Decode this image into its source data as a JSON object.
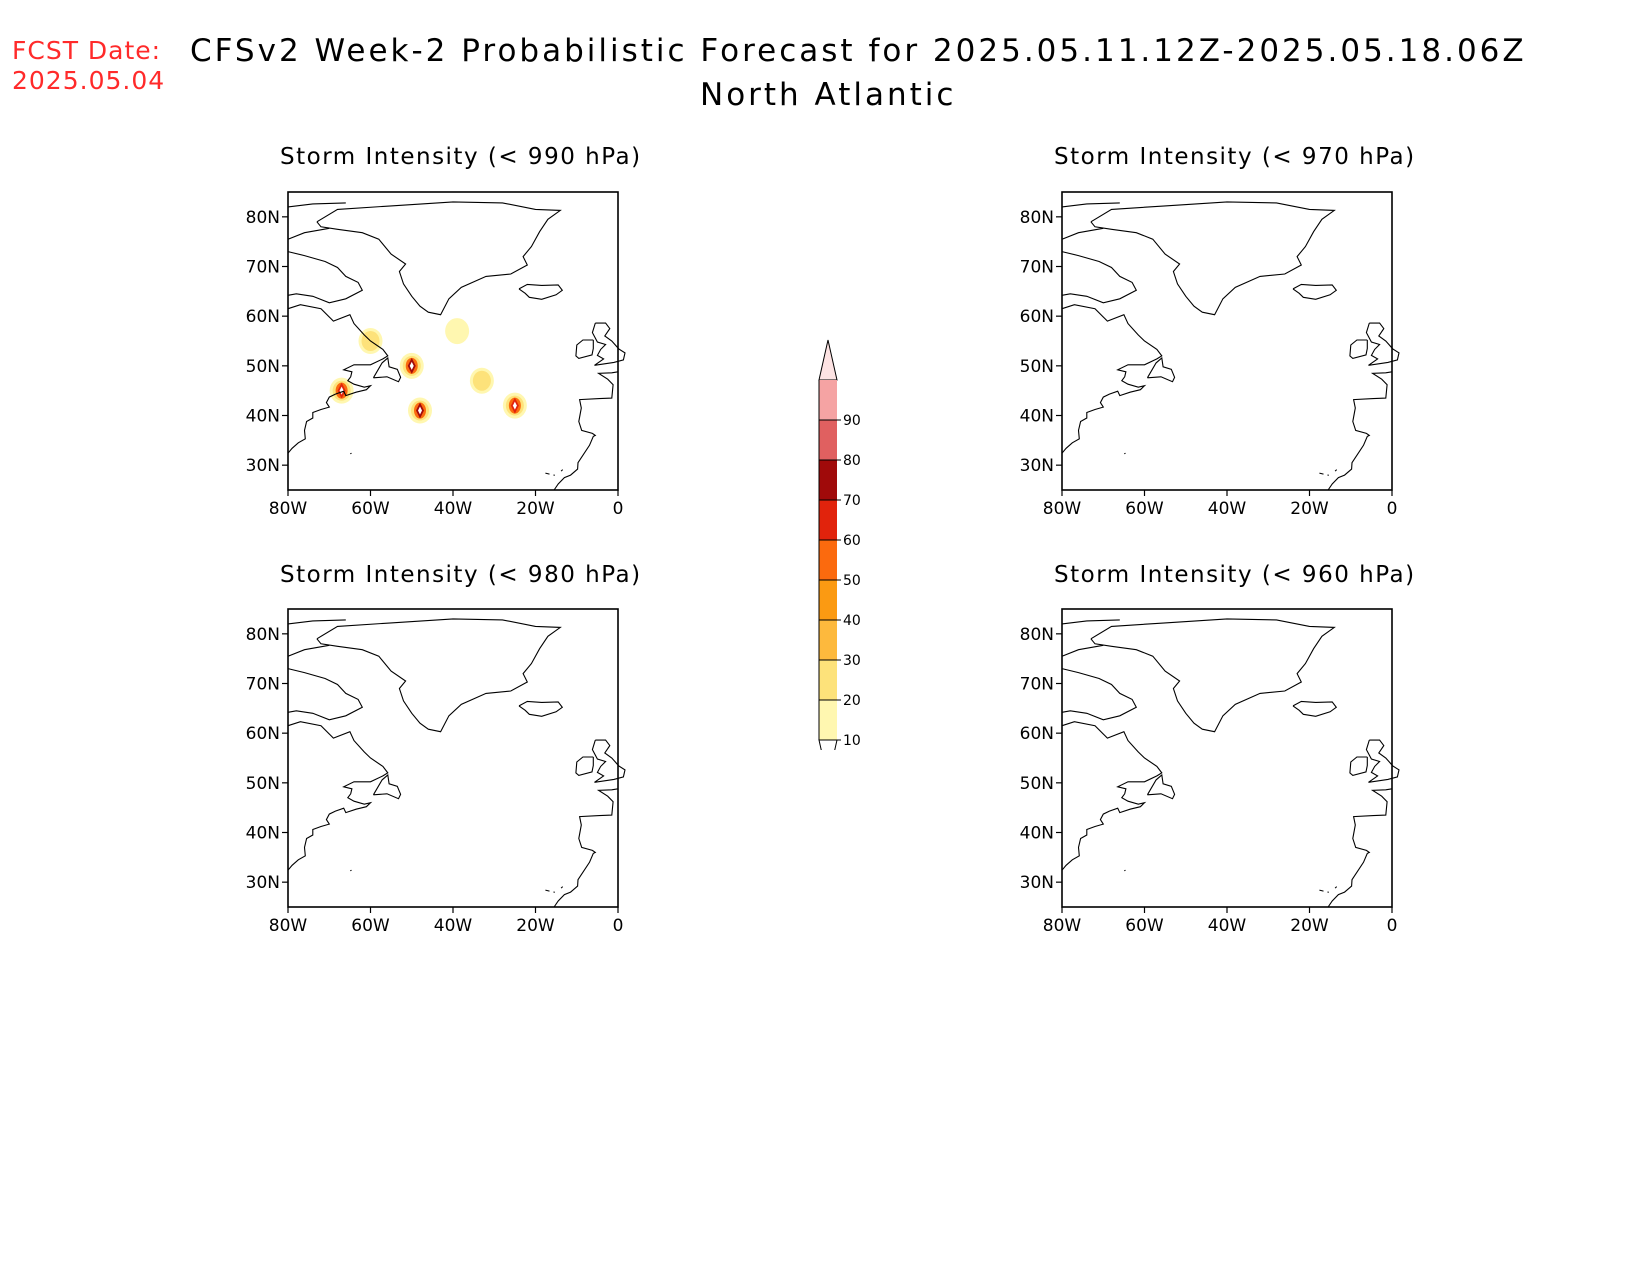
{
  "fcst": {
    "label": "FCST Date:",
    "date": "2025.05.04"
  },
  "title": "CFSv2 Week-2 Probabilistic Forecast for 2025.05.11.12Z-2025.05.18.06Z",
  "subtitle": "North Atlantic",
  "axes": {
    "lon_ticks": [
      "80W",
      "60W",
      "40W",
      "20W",
      "0"
    ],
    "lat_ticks": [
      "80N",
      "70N",
      "60N",
      "50N",
      "40N",
      "30N"
    ]
  },
  "panels": [
    {
      "id": "p990",
      "title": "Storm Intensity (< 990 hPa)"
    },
    {
      "id": "p970",
      "title": "Storm Intensity (< 970 hPa)"
    },
    {
      "id": "p980",
      "title": "Storm Intensity (< 980 hPa)"
    },
    {
      "id": "p960",
      "title": "Storm Intensity (< 960 hPa)"
    }
  ],
  "colorbar": {
    "levels": [
      "10",
      "20",
      "30",
      "40",
      "50",
      "60",
      "70",
      "80",
      "90"
    ],
    "colors": [
      "#fff7b0",
      "#fde27a",
      "#fdb93d",
      "#fb9a12",
      "#fb6a0e",
      "#e1230c",
      "#a00a0a",
      "#e06060",
      "#f5a3a3",
      "#fde3e3"
    ]
  },
  "probability_blobs_990": [
    {
      "lon": -50,
      "lat": 50,
      "peak": "#a00a0a"
    },
    {
      "lon": -48,
      "lat": 41,
      "peak": "#a00a0a"
    },
    {
      "lon": -67,
      "lat": 45,
      "peak": "#e1230c"
    },
    {
      "lon": -25,
      "lat": 42,
      "peak": "#e1230c"
    },
    {
      "lon": -33,
      "lat": 47,
      "peak": "#fde27a"
    },
    {
      "lon": -60,
      "lat": 55,
      "peak": "#fde27a"
    },
    {
      "lon": -39,
      "lat": 57,
      "peak": "#fff7b0"
    }
  ]
}
